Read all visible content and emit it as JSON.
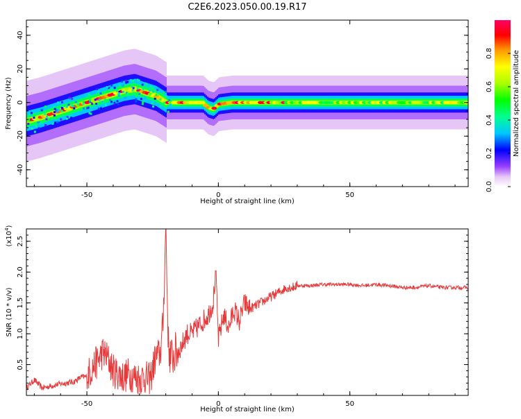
{
  "title": "C2E6.2023.050.00.19.R17",
  "colorbar": {
    "label": "Normalized spectral amplitude",
    "range": [
      0,
      1
    ],
    "ticks": [
      "0.0",
      "0.2",
      "0.4",
      "0.6",
      "0.8"
    ],
    "tick_values": [
      0,
      0.2,
      0.4,
      0.6,
      0.8
    ],
    "colors": [
      "#ffffff",
      "#d9a8f0",
      "#7a00ff",
      "#0000ff",
      "#00c8ff",
      "#00ff90",
      "#00ff00",
      "#aaff00",
      "#ffff00",
      "#ff9900",
      "#ff0000",
      "#ff0066"
    ]
  },
  "chart_data": [
    {
      "type": "heatmap",
      "xlabel": "Height of straight line (km)",
      "ylabel": "Frequency (Hz)",
      "xlim": [
        -73,
        95
      ],
      "ylim": [
        -50,
        49
      ],
      "xticks": [
        "-50",
        "0",
        "50"
      ],
      "xtick_values": [
        -50,
        0,
        50
      ],
      "yticks": [
        "-40",
        "-20",
        "0",
        "20",
        "40"
      ],
      "ytick_values": [
        -40,
        -20,
        0,
        20,
        40
      ],
      "ridge": {
        "x": [
          -73,
          -68,
          -62,
          -56,
          -52,
          -48,
          -44,
          -40,
          -36,
          -32,
          -30,
          -28,
          -26,
          -24,
          -22,
          -20,
          -15,
          -10,
          -6,
          -4,
          -2,
          0,
          5,
          10,
          20,
          40,
          60,
          80,
          95
        ],
        "y": [
          -11,
          -9,
          -6,
          -3,
          -1,
          1,
          3,
          5,
          7,
          8,
          7,
          6,
          5,
          4,
          2,
          0,
          0,
          0,
          0,
          -3,
          -4,
          -1,
          0,
          0,
          0,
          0,
          0,
          0,
          0
        ]
      }
    },
    {
      "type": "line",
      "xlabel": "Height of straight line (km)",
      "ylabel": "SNR (10 * v/v)",
      "ylabel_exponent": "(x10",
      "exponent_value": "4",
      "exponent_close": ")",
      "xlim": [
        -73,
        95
      ],
      "ylim": [
        0.0,
        2.7
      ],
      "xticks": [
        "-50",
        "0",
        "50"
      ],
      "xtick_values": [
        -50,
        0,
        50
      ],
      "yticks": [
        "0.5",
        "1.0",
        "1.5",
        "2.0",
        "2.5"
      ],
      "ytick_values": [
        0.5,
        1.0,
        1.5,
        2.0,
        2.5
      ],
      "series_color": "#e8393a",
      "series": [
        {
          "x": [
            -73,
            -70,
            -67,
            -64,
            -61,
            -58,
            -55,
            -52,
            -50,
            -48,
            -46,
            -44,
            -42,
            -40,
            -38,
            -36,
            -34,
            -32,
            -30,
            -28,
            -26,
            -24,
            -22,
            -21,
            -20,
            -19,
            -18,
            -16,
            -14,
            -12,
            -10,
            -8,
            -6,
            -4,
            -2,
            -1,
            0,
            1,
            2,
            4,
            6,
            8,
            10,
            12,
            14,
            16,
            18,
            20,
            22,
            24,
            26,
            28,
            30,
            35,
            40,
            45,
            50,
            55,
            60,
            65,
            70,
            75,
            80,
            85,
            90,
            95
          ],
          "values": [
            0.12,
            0.25,
            0.12,
            0.15,
            0.18,
            0.2,
            0.22,
            0.3,
            0.3,
            0.45,
            0.55,
            0.7,
            0.6,
            0.4,
            0.35,
            0.3,
            0.35,
            0.3,
            0.28,
            0.3,
            0.25,
            0.6,
            0.7,
            1.2,
            2.7,
            0.8,
            0.6,
            0.7,
            0.8,
            1.0,
            1.0,
            1.1,
            1.2,
            1.3,
            1.5,
            2.0,
            0.9,
            1.1,
            1.3,
            1.1,
            1.4,
            1.2,
            1.5,
            1.4,
            1.45,
            1.5,
            1.55,
            1.6,
            1.65,
            1.7,
            1.75,
            1.75,
            1.78,
            1.78,
            1.8,
            1.8,
            1.8,
            1.78,
            1.8,
            1.78,
            1.75,
            1.75,
            1.78,
            1.75,
            1.75,
            1.75
          ]
        }
      ]
    }
  ]
}
